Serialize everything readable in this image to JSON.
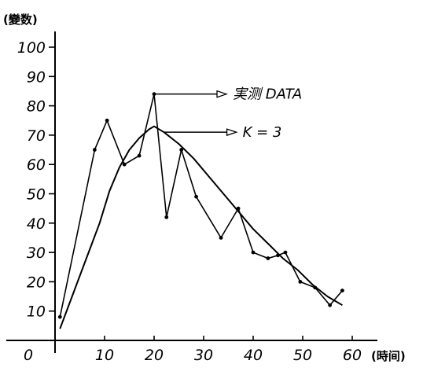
{
  "chart_data": {
    "type": "line",
    "title": "",
    "xlabel": "(時间)",
    "ylabel": "(變数)",
    "origin_label": "0",
    "xlim": [
      0,
      60
    ],
    "ylim": [
      0,
      100
    ],
    "x_ticks": [
      10,
      20,
      30,
      40,
      50,
      60
    ],
    "y_ticks": [
      10,
      20,
      30,
      40,
      50,
      60,
      70,
      80,
      90,
      100
    ],
    "grid": false,
    "series": [
      {
        "name": "実测 DATA",
        "style": "polyline-with-dots",
        "points": [
          [
            1,
            8
          ],
          [
            8,
            65
          ],
          [
            10.5,
            75
          ],
          [
            14,
            60
          ],
          [
            17,
            63
          ],
          [
            20,
            84
          ],
          [
            22.5,
            42
          ],
          [
            25.5,
            65
          ],
          [
            28.5,
            49
          ],
          [
            33.5,
            35
          ],
          [
            37,
            45
          ],
          [
            40,
            30
          ],
          [
            43,
            28
          ],
          [
            45,
            29
          ],
          [
            46.5,
            30
          ],
          [
            49.5,
            20
          ],
          [
            52.5,
            18
          ],
          [
            55.5,
            12
          ],
          [
            58,
            17
          ]
        ]
      },
      {
        "name": "K = 3",
        "style": "smooth-curve",
        "points": [
          [
            1,
            4
          ],
          [
            3,
            13
          ],
          [
            5,
            22
          ],
          [
            7,
            31
          ],
          [
            9,
            40
          ],
          [
            11,
            51
          ],
          [
            13,
            59
          ],
          [
            15,
            65
          ],
          [
            17,
            69
          ],
          [
            19,
            72
          ],
          [
            20,
            73
          ],
          [
            22,
            71
          ],
          [
            25,
            67
          ],
          [
            28,
            62
          ],
          [
            31,
            56
          ],
          [
            34,
            50
          ],
          [
            37,
            44
          ],
          [
            40,
            38
          ],
          [
            43,
            33
          ],
          [
            46,
            28
          ],
          [
            49,
            24
          ],
          [
            52,
            19
          ],
          [
            55,
            15
          ],
          [
            58,
            12
          ]
        ]
      }
    ],
    "annotations": [
      {
        "text": "実测 DATA",
        "series": 0,
        "anchor_x": 20,
        "anchor_y": 84
      },
      {
        "text": "K = 3",
        "series": 1,
        "anchor_x": 22,
        "anchor_y": 71
      }
    ]
  }
}
